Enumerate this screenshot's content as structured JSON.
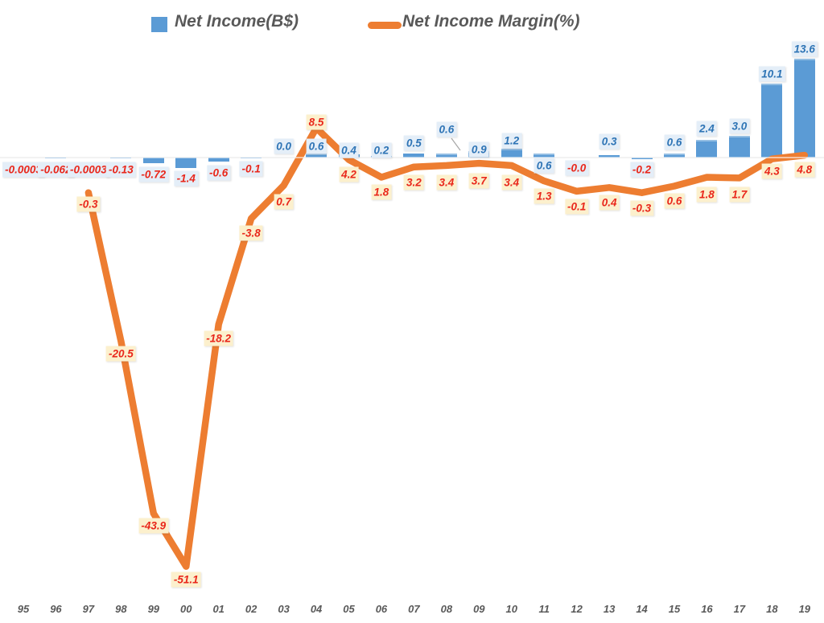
{
  "legend": {
    "net_income_label": "Net Income(B$)",
    "margin_label": "Net Income Margin(%)"
  },
  "colors": {
    "bar": "#5B9BD5",
    "bar_label_bg": "#E4EEF8",
    "bar_label_text": "#2E74B5",
    "negative_label_text": "#E9271B",
    "line": "#ED7D31",
    "line_label_bg": "#FCF0CD",
    "line_label_text": "#E9271B",
    "axis_text": "#595959"
  },
  "chart_data": {
    "type": "bar+line combo",
    "title": "",
    "xlabel": "",
    "ylabel": "",
    "legend_position": "top",
    "grid": "zero axis line only",
    "categories": [
      "95",
      "96",
      "97",
      "98",
      "99",
      "00",
      "01",
      "02",
      "03",
      "04",
      "05",
      "06",
      "07",
      "08",
      "09",
      "10",
      "11",
      "12",
      "13",
      "14",
      "15",
      "16",
      "17",
      "18",
      "19"
    ],
    "series": [
      {
        "name": "Net Income(B$)",
        "type": "bar",
        "values": [
          -0.0003,
          -0.062,
          -0.0003,
          -0.13,
          -0.72,
          -1.4,
          -0.6,
          -0.1,
          0.0,
          0.6,
          0.4,
          0.2,
          0.5,
          0.6,
          0.9,
          1.2,
          0.6,
          0.0,
          0.3,
          -0.2,
          0.6,
          2.4,
          3.0,
          10.1,
          13.6
        ],
        "labels": [
          "-0.0003",
          "-0.062",
          "-0.0003",
          "-0.13",
          "-0.72",
          "-1.4",
          "-0.6",
          "-0.1",
          "0.0",
          "0.6",
          "0.4",
          "0.2",
          "0.5",
          "0.6",
          "0.9",
          "1.2",
          "0.6",
          "-0.0",
          "0.3",
          "-0.2",
          "0.6",
          "2.4",
          "3.0",
          "10.1",
          "13.6"
        ]
      },
      {
        "name": "Net Income Margin(%)",
        "type": "line",
        "values": [
          null,
          null,
          -0.3,
          -20.5,
          -43.9,
          -51.1,
          -18.2,
          -3.8,
          0.7,
          8.5,
          4.2,
          1.8,
          3.2,
          3.4,
          3.7,
          3.4,
          1.3,
          -0.1,
          0.4,
          -0.3,
          0.6,
          1.8,
          1.7,
          4.3,
          4.8
        ],
        "labels": [
          null,
          null,
          "-0.3",
          "-20.5",
          "-43.9",
          "-51.1",
          "-18.2",
          "-3.8",
          "0.7",
          "8.5",
          "4.2",
          "1.8",
          "3.2",
          "3.4",
          "3.7",
          "3.4",
          "1.3",
          "-0.1",
          "0.4",
          "-0.3",
          "0.6",
          "1.8",
          "1.7",
          "4.3",
          "4.8"
        ]
      }
    ]
  }
}
